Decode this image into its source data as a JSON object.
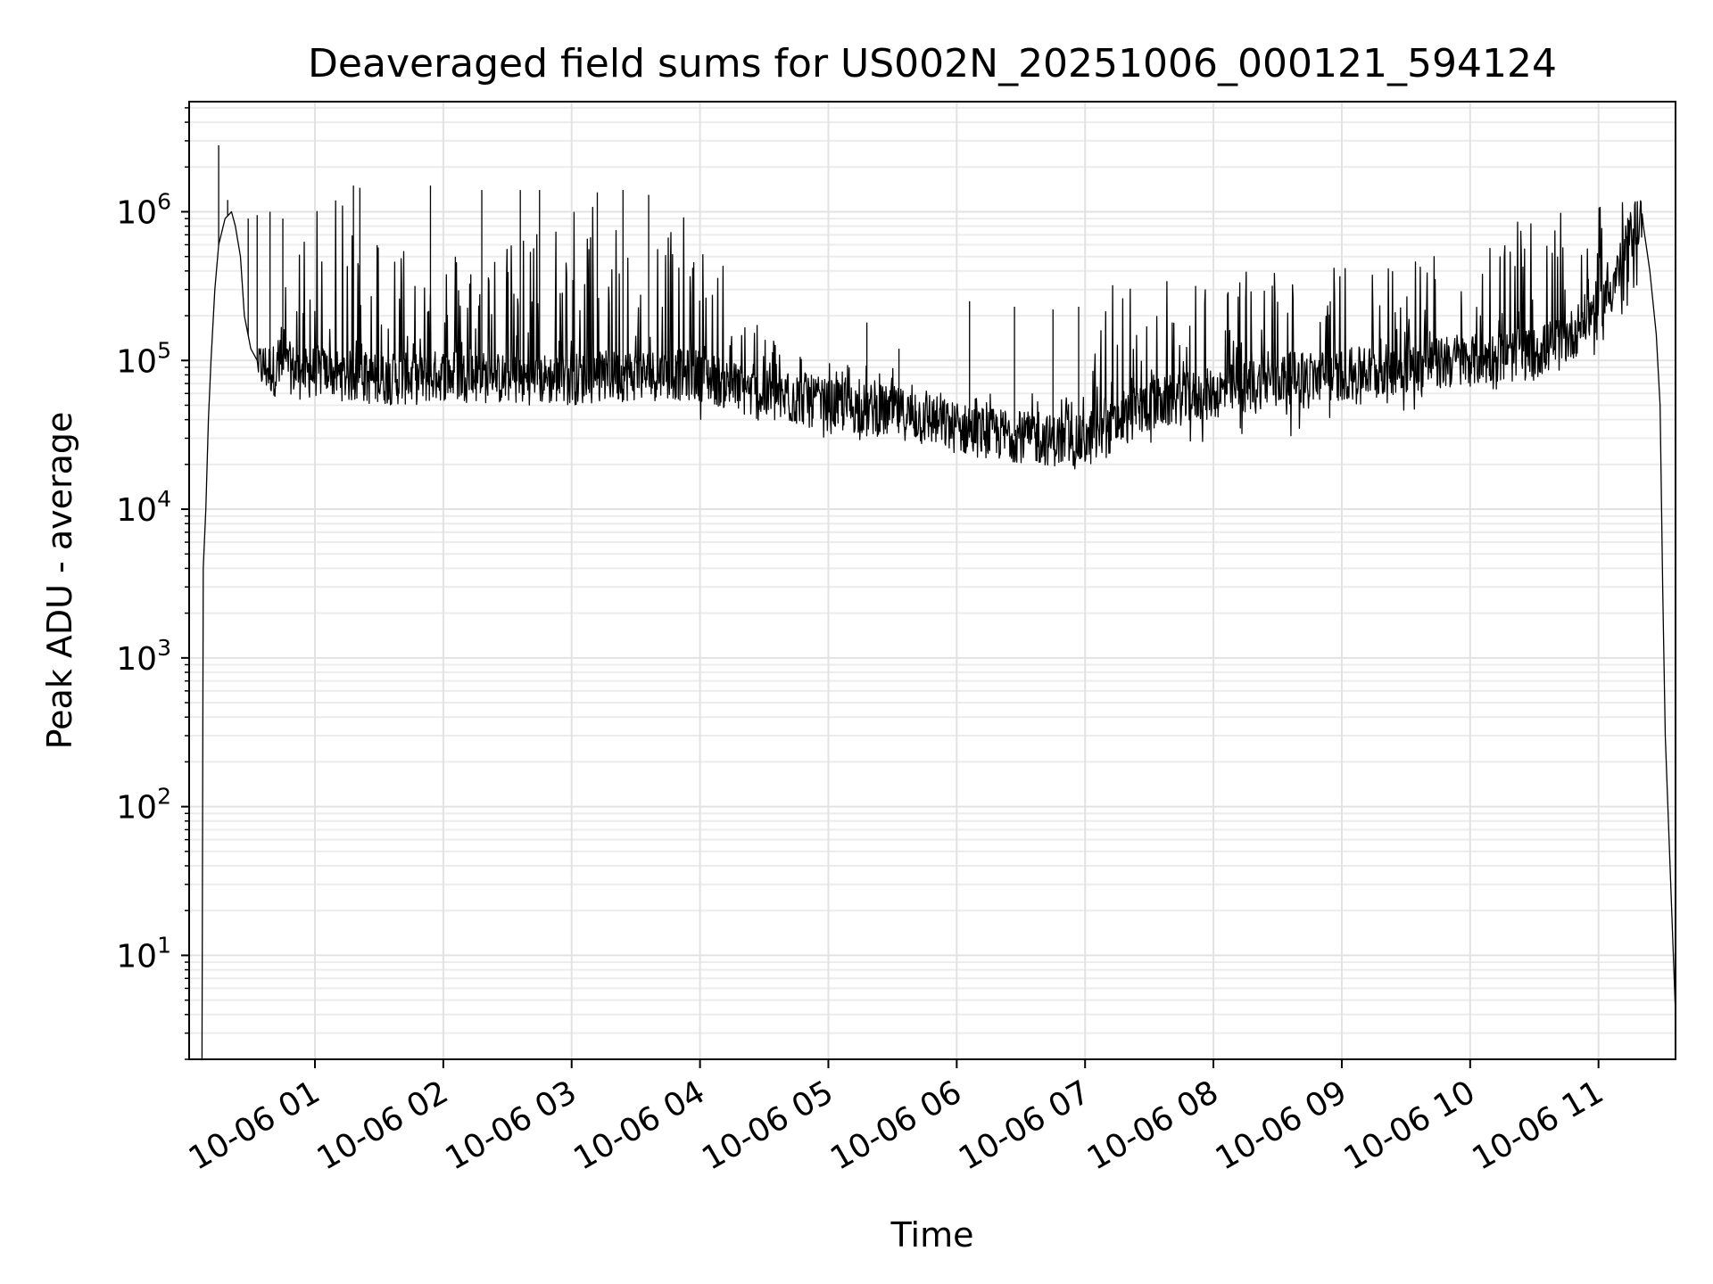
{
  "chart_data": {
    "type": "line",
    "title": "Deaveraged field sums for US002N_20251006_000121_594124",
    "xlabel": "Time",
    "ylabel": "Peak ADU - average",
    "yscale": "log",
    "grid": true,
    "x_unit": "hours since 2025-10-06 00:00",
    "xlim": [
      0.02,
      11.6
    ],
    "ylim": [
      2,
      5500000.0
    ],
    "x_ticks": [
      {
        "value": 1,
        "label": "10-06 01"
      },
      {
        "value": 2,
        "label": "10-06 02"
      },
      {
        "value": 3,
        "label": "10-06 03"
      },
      {
        "value": 4,
        "label": "10-06 04"
      },
      {
        "value": 5,
        "label": "10-06 05"
      },
      {
        "value": 6,
        "label": "10-06 06"
      },
      {
        "value": 7,
        "label": "10-06 07"
      },
      {
        "value": 8,
        "label": "10-06 08"
      },
      {
        "value": 9,
        "label": "10-06 09"
      },
      {
        "value": 10,
        "label": "10-06 10"
      },
      {
        "value": 11,
        "label": "10-06 11"
      }
    ],
    "y_ticks": [
      {
        "value": 10,
        "base": "10",
        "exp": "1"
      },
      {
        "value": 100,
        "base": "10",
        "exp": "2"
      },
      {
        "value": 1000,
        "base": "10",
        "exp": "3"
      },
      {
        "value": 10000,
        "base": "10",
        "exp": "4"
      },
      {
        "value": 100000,
        "base": "10",
        "exp": "5"
      },
      {
        "value": 1000000,
        "base": "10",
        "exp": "6"
      }
    ],
    "series": [
      {
        "name": "Peak ADU - average",
        "color": "#000000",
        "x": [
          0.12,
          0.13,
          0.15,
          0.17,
          0.19,
          0.22,
          0.25,
          0.3,
          0.35,
          0.38,
          0.42,
          0.45,
          0.5,
          0.55,
          0.6,
          0.7,
          0.8,
          0.9,
          1.0,
          1.2,
          1.4,
          1.6,
          1.8,
          2.0,
          2.5,
          3.0,
          3.5,
          3.8,
          4.0,
          4.2,
          4.4,
          4.6,
          4.8,
          5.0,
          5.2,
          5.5,
          5.8,
          6.0,
          6.3,
          6.6,
          6.9,
          7.1,
          7.2,
          7.5,
          8.0,
          8.5,
          9.0,
          9.5,
          10.0,
          10.5,
          10.8,
          11.1,
          11.3,
          11.35,
          11.4,
          11.45,
          11.48,
          11.5,
          11.52,
          11.6
        ],
        "y": [
          2,
          4000,
          10000,
          40000,
          100000,
          300000,
          600000,
          900000,
          1000000,
          800000,
          500000,
          200000,
          120000,
          100000,
          90000,
          85000,
          90000,
          80000,
          85000,
          80000,
          75000,
          75000,
          75000,
          80000,
          75000,
          75000,
          80000,
          80000,
          80000,
          70000,
          60000,
          55000,
          55000,
          50000,
          48000,
          45000,
          40000,
          35000,
          32000,
          30000,
          28000,
          30000,
          35000,
          50000,
          60000,
          75000,
          80000,
          90000,
          100000,
          110000,
          150000,
          300000,
          900000,
          800000,
          400000,
          150000,
          50000,
          3000,
          300,
          4
        ]
      }
    ],
    "noise_band": [
      {
        "x": 0.6,
        "lo": 70000,
        "hi": 120000
      },
      {
        "x": 1.0,
        "lo": 60000,
        "hi": 1400000
      },
      {
        "x": 1.5,
        "lo": 60000,
        "hi": 900000
      },
      {
        "x": 2.0,
        "lo": 60000,
        "hi": 600000
      },
      {
        "x": 2.5,
        "lo": 60000,
        "hi": 600000
      },
      {
        "x": 3.0,
        "lo": 60000,
        "hi": 1300000
      },
      {
        "x": 3.5,
        "lo": 60000,
        "hi": 1200000
      },
      {
        "x": 3.8,
        "lo": 70000,
        "hi": 1000000
      },
      {
        "x": 4.0,
        "lo": 40000,
        "hi": 800000
      },
      {
        "x": 4.3,
        "lo": 40000,
        "hi": 300000
      },
      {
        "x": 4.6,
        "lo": 35000,
        "hi": 150000
      },
      {
        "x": 5.0,
        "lo": 30000,
        "hi": 100000
      },
      {
        "x": 5.5,
        "lo": 28000,
        "hi": 90000
      },
      {
        "x": 6.0,
        "lo": 22000,
        "hi": 60000
      },
      {
        "x": 6.5,
        "lo": 20000,
        "hi": 60000
      },
      {
        "x": 7.0,
        "lo": 18000,
        "hi": 60000
      },
      {
        "x": 7.2,
        "lo": 25000,
        "hi": 350000
      },
      {
        "x": 7.5,
        "lo": 25000,
        "hi": 350000
      },
      {
        "x": 8.0,
        "lo": 25000,
        "hi": 400000
      },
      {
        "x": 8.5,
        "lo": 30000,
        "hi": 450000
      },
      {
        "x": 9.0,
        "lo": 35000,
        "hi": 450000
      },
      {
        "x": 9.5,
        "lo": 45000,
        "hi": 550000
      },
      {
        "x": 10.0,
        "lo": 60000,
        "hi": 750000
      },
      {
        "x": 10.5,
        "lo": 70000,
        "hi": 900000
      },
      {
        "x": 11.0,
        "lo": 100000,
        "hi": 1100000
      },
      {
        "x": 11.3,
        "lo": 200000,
        "hi": 1300000
      }
    ],
    "spikes": [
      {
        "x": 0.25,
        "y": 2800000
      },
      {
        "x": 0.32,
        "y": 1200000
      },
      {
        "x": 0.48,
        "y": 900000
      },
      {
        "x": 0.55,
        "y": 950000
      },
      {
        "x": 0.65,
        "y": 1000000
      },
      {
        "x": 0.75,
        "y": 900000
      },
      {
        "x": 1.3,
        "y": 1500000
      },
      {
        "x": 1.35,
        "y": 1450000
      },
      {
        "x": 1.9,
        "y": 1500000
      },
      {
        "x": 2.3,
        "y": 1400000
      },
      {
        "x": 2.6,
        "y": 1400000
      },
      {
        "x": 2.75,
        "y": 1400000
      },
      {
        "x": 3.2,
        "y": 1350000
      },
      {
        "x": 3.4,
        "y": 1400000
      },
      {
        "x": 3.6,
        "y": 1300000
      },
      {
        "x": 6.1,
        "y": 250000
      },
      {
        "x": 6.45,
        "y": 230000
      },
      {
        "x": 6.75,
        "y": 220000
      },
      {
        "x": 6.95,
        "y": 230000
      },
      {
        "x": 5.3,
        "y": 180000
      },
      {
        "x": 5.55,
        "y": 120000
      }
    ]
  }
}
